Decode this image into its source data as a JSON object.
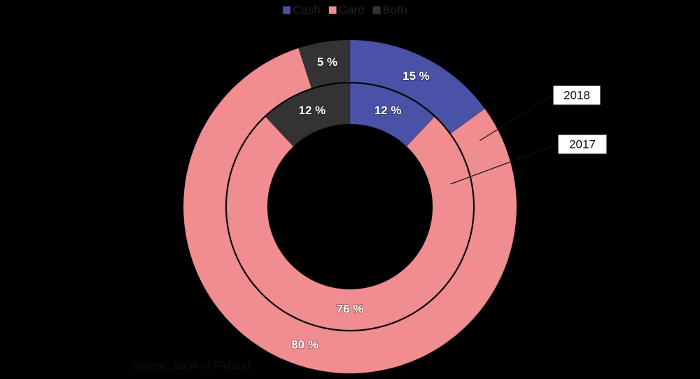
{
  "chart_data": {
    "type": "donut",
    "categories": [
      "Cash",
      "Card",
      "Both"
    ],
    "colors": [
      "#4a52a8",
      "#f08d90",
      "#333333"
    ],
    "series": [
      {
        "name": "2018",
        "values": [
          15,
          80,
          5
        ],
        "value_labels": [
          "15 %",
          "80 %",
          "5 %"
        ]
      },
      {
        "name": "2017",
        "values": [
          12,
          76,
          12
        ],
        "value_labels": [
          "12 %",
          "76 %",
          "12 %"
        ]
      }
    ],
    "source": "Source: Bank of Finland."
  }
}
